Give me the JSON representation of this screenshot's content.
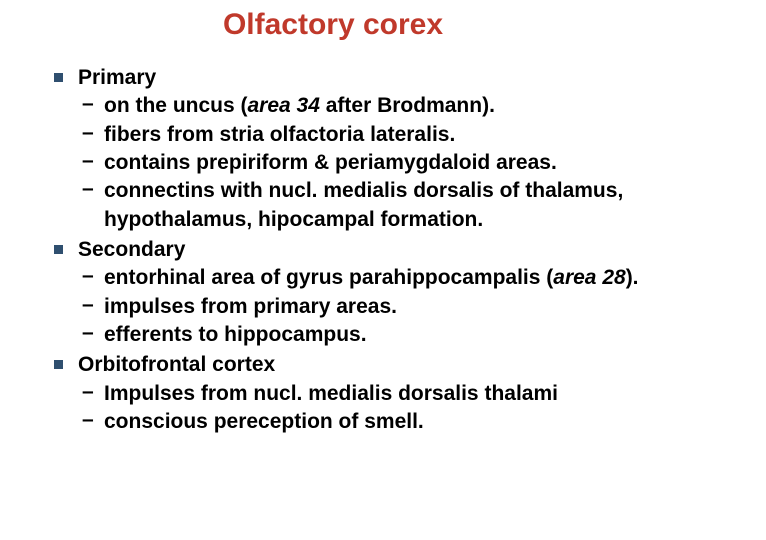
{
  "title": "Olfactory corex",
  "colors": {
    "title": "#c0392b",
    "bullet_square": "#2f4f6f",
    "text": "#000000",
    "background": "#ffffff"
  },
  "typography": {
    "title_fontsize": 30,
    "body_fontsize": 21,
    "font_family": "Verdana",
    "title_weight": "bold",
    "body_weight": "bold"
  },
  "sections": [
    {
      "heading": "Primary",
      "items": [
        {
          "prefix": "on the uncus (",
          "italic": "area 34",
          "suffix": " after Brodmann)."
        },
        {
          "text": "fibers from stria olfactoria lateralis."
        },
        {
          "text": "contains prepiriform  & periamygdaloid areas."
        },
        {
          "text": "connectins with nucl. medialis dorsalis of thalamus, hypothalamus, hipocampal formation."
        }
      ]
    },
    {
      "heading": "Secondary",
      "items": [
        {
          "prefix": "entorhinal area of gyrus parahippocampalis (",
          "italic": "area 28",
          "suffix": ")."
        },
        {
          "text": "impulses from primary areas."
        },
        {
          "text": "efferents to hippocampus."
        }
      ]
    },
    {
      "heading": "Orbitofrontal cortex",
      "items": [
        {
          "text": "Impulses from nucl. medialis dorsalis thalami"
        },
        {
          "text": "conscious pereception of smell."
        }
      ]
    }
  ]
}
